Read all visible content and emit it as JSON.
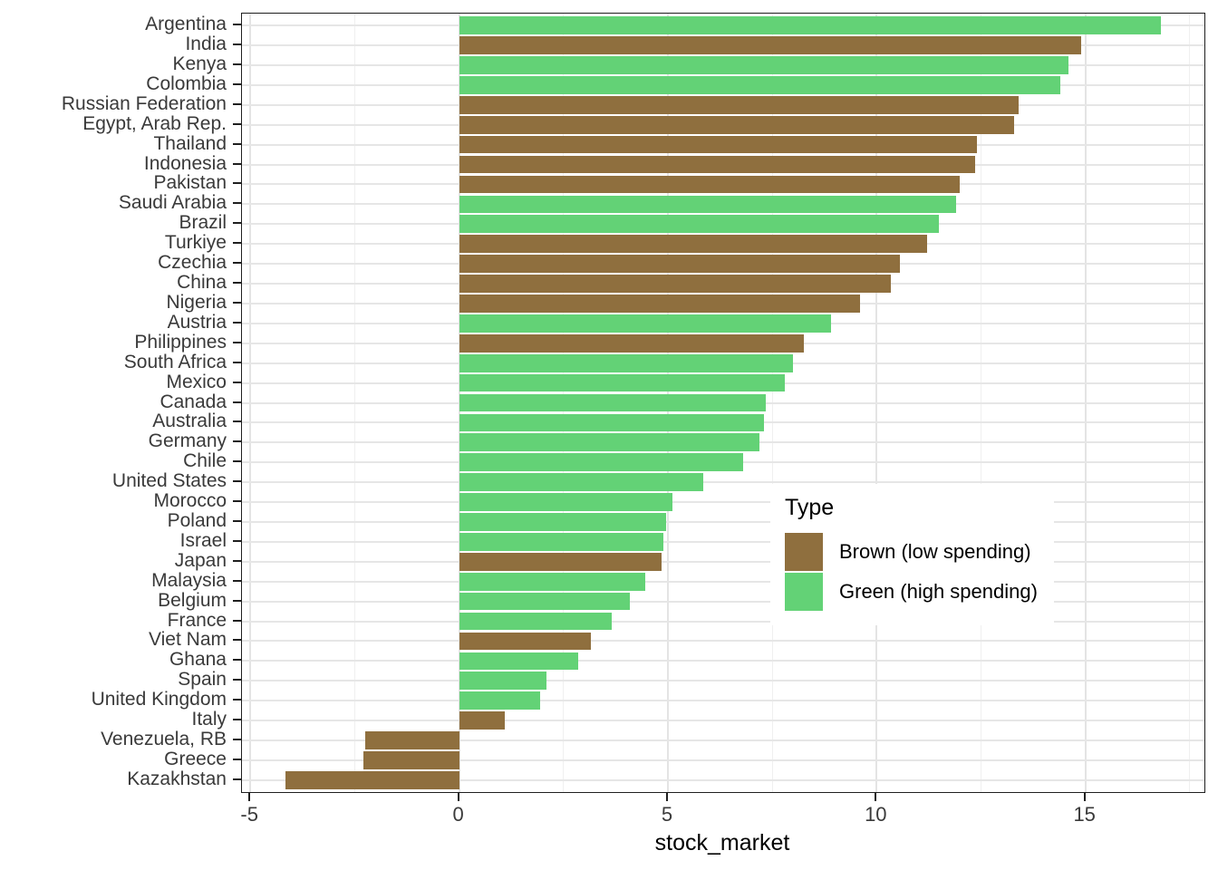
{
  "chart_data": {
    "type": "bar",
    "orientation": "horizontal",
    "title": "",
    "xlabel": "stock_market",
    "ylabel": "",
    "xlim": [
      -5.2,
      17.85
    ],
    "x_ticks": [
      -5,
      0,
      5,
      10,
      15
    ],
    "x_minor_ticks": [
      -2.5,
      2.5,
      7.5,
      12.5,
      17.5
    ],
    "grid": true,
    "bar_width_fraction": 0.9,
    "type_colors": {
      "brown": "#8f6f3e",
      "green": "#63d276"
    },
    "legend": {
      "title": "Type",
      "position": "inside-right",
      "entries": [
        {
          "key": "brown",
          "label": "Brown (low spending)",
          "color": "#8f6f3e"
        },
        {
          "key": "green",
          "label": "Green (high spending)",
          "color": "#63d276"
        }
      ]
    },
    "categories": [
      "Argentina",
      "India",
      "Kenya",
      "Colombia",
      "Russian Federation",
      "Egypt, Arab Rep.",
      "Thailand",
      "Indonesia",
      "Pakistan",
      "Saudi Arabia",
      "Brazil",
      "Turkiye",
      "Czechia",
      "China",
      "Nigeria",
      "Austria",
      "Philippines",
      "South Africa",
      "Mexico",
      "Canada",
      "Australia",
      "Germany",
      "Chile",
      "United States",
      "Morocco",
      "Poland",
      "Israel",
      "Japan",
      "Malaysia",
      "Belgium",
      "France",
      "Viet Nam",
      "Ghana",
      "Spain",
      "United Kingdom",
      "Italy",
      "Venezuela, RB",
      "Greece",
      "Kazakhstan"
    ],
    "values": [
      16.8,
      14.9,
      14.6,
      14.4,
      13.4,
      13.3,
      12.4,
      12.35,
      12.0,
      11.9,
      11.5,
      11.2,
      10.55,
      10.35,
      9.6,
      8.9,
      8.25,
      8.0,
      7.8,
      7.35,
      7.3,
      7.2,
      6.8,
      5.85,
      5.1,
      4.95,
      4.9,
      4.85,
      4.45,
      4.1,
      3.65,
      3.15,
      2.85,
      2.1,
      1.95,
      1.1,
      -2.25,
      -2.3,
      -4.15
    ],
    "types": [
      "green",
      "brown",
      "green",
      "green",
      "brown",
      "brown",
      "brown",
      "brown",
      "brown",
      "green",
      "green",
      "brown",
      "brown",
      "brown",
      "brown",
      "green",
      "brown",
      "green",
      "green",
      "green",
      "green",
      "green",
      "green",
      "green",
      "green",
      "green",
      "green",
      "brown",
      "green",
      "green",
      "green",
      "brown",
      "green",
      "green",
      "green",
      "brown",
      "brown",
      "brown",
      "brown"
    ]
  }
}
